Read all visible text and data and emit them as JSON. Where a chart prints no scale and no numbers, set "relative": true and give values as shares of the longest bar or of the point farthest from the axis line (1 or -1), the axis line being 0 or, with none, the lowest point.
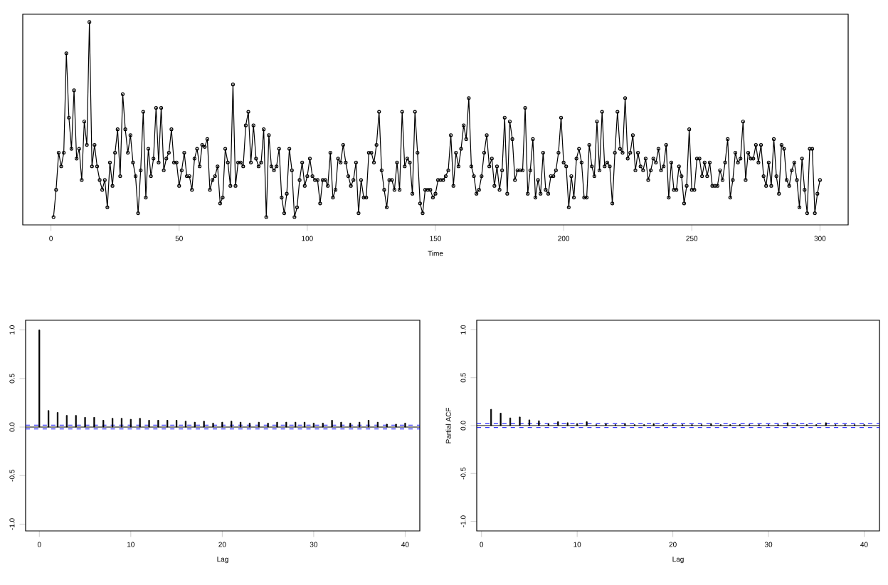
{
  "chart_data": [
    {
      "type": "line",
      "xlabel": "Time",
      "relative": true,
      "color": "#000000",
      "marker": "circle",
      "line_style": "solid",
      "xlim": [
        -11,
        311
      ],
      "xticks": [
        0,
        50,
        100,
        150,
        200,
        250,
        300
      ],
      "x": [
        1,
        2,
        3,
        4,
        5,
        6,
        7,
        8,
        9,
        10,
        11,
        12,
        13,
        14,
        15,
        16,
        17,
        18,
        19,
        20,
        21,
        22,
        23,
        24,
        25,
        26,
        27,
        28,
        29,
        30,
        31,
        32,
        33,
        34,
        35,
        36,
        37,
        38,
        39,
        40,
        41,
        42,
        43,
        44,
        45,
        46,
        47,
        48,
        49,
        50,
        51,
        52,
        53,
        54,
        55,
        56,
        57,
        58,
        59,
        60,
        61,
        62,
        63,
        64,
        65,
        66,
        67,
        68,
        69,
        70,
        71,
        72,
        73,
        74,
        75,
        76,
        77,
        78,
        79,
        80,
        81,
        82,
        83,
        84,
        85,
        86,
        87,
        88,
        89,
        90,
        91,
        92,
        93,
        94,
        95,
        96,
        97,
        98,
        99,
        100,
        101,
        102,
        103,
        104,
        105,
        106,
        107,
        108,
        109,
        110,
        111,
        112,
        113,
        114,
        115,
        116,
        117,
        118,
        119,
        120,
        121,
        122,
        123,
        124,
        125,
        126,
        127,
        128,
        129,
        130,
        131,
        132,
        133,
        134,
        135,
        136,
        137,
        138,
        139,
        140,
        141,
        142,
        143,
        144,
        145,
        146,
        147,
        148,
        149,
        150,
        151,
        152,
        153,
        154,
        155,
        156,
        157,
        158,
        159,
        160,
        161,
        162,
        163,
        164,
        165,
        166,
        167,
        168,
        169,
        170,
        171,
        172,
        173,
        174,
        175,
        176,
        177,
        178,
        179,
        180,
        181,
        182,
        183,
        184,
        185,
        186,
        187,
        188,
        189,
        190,
        191,
        192,
        193,
        194,
        195,
        196,
        197,
        198,
        199,
        200,
        201,
        202,
        203,
        204,
        205,
        206,
        207,
        208,
        209,
        210,
        211,
        212,
        213,
        214,
        215,
        216,
        217,
        218,
        219,
        220,
        221,
        222,
        223,
        224,
        225,
        226,
        227,
        228,
        229,
        230,
        231,
        232,
        233,
        234,
        235,
        236,
        237,
        238,
        239,
        240,
        241,
        242,
        243,
        244,
        245,
        246,
        247,
        248,
        249,
        250,
        251,
        252,
        253,
        254,
        255,
        256,
        257,
        258,
        259,
        260,
        261,
        262,
        263,
        264,
        265,
        266,
        267,
        268,
        269,
        270,
        271,
        272,
        273,
        274,
        275,
        276,
        277,
        278,
        279,
        280,
        281,
        282,
        283,
        284,
        285,
        286,
        287,
        288,
        289,
        290,
        291,
        292,
        293,
        294,
        295,
        296,
        297,
        298,
        299,
        300
      ],
      "values": [
        0,
        0.14,
        0.33,
        0.26,
        0.33,
        0.84,
        0.51,
        0.35,
        0.65,
        0.3,
        0.35,
        0.19,
        0.49,
        0.37,
        1,
        0.26,
        0.37,
        0.26,
        0.19,
        0.14,
        0.19,
        0.05,
        0.28,
        0.16,
        0.33,
        0.45,
        0.21,
        0.63,
        0.45,
        0.33,
        0.42,
        0.28,
        0.21,
        0.02,
        0.24,
        0.54,
        0.1,
        0.35,
        0.21,
        0.3,
        0.56,
        0.28,
        0.56,
        0.24,
        0.3,
        0.33,
        0.45,
        0.28,
        0.28,
        0.16,
        0.24,
        0.33,
        0.21,
        0.21,
        0.14,
        0.3,
        0.35,
        0.26,
        0.37,
        0.36,
        0.4,
        0.14,
        0.19,
        0.21,
        0.26,
        0.07,
        0.1,
        0.35,
        0.28,
        0.16,
        0.68,
        0.16,
        0.28,
        0.28,
        0.26,
        0.47,
        0.54,
        0.28,
        0.47,
        0.3,
        0.26,
        0.28,
        0.45,
        0,
        0.42,
        0.26,
        0.24,
        0.26,
        0.35,
        0.1,
        0.02,
        0.12,
        0.35,
        0.24,
        0,
        0.05,
        0.19,
        0.28,
        0.16,
        0.21,
        0.3,
        0.21,
        0.19,
        0.19,
        0.07,
        0.19,
        0.19,
        0.16,
        0.33,
        0.1,
        0.14,
        0.3,
        0.28,
        0.37,
        0.28,
        0.21,
        0.16,
        0.19,
        0.28,
        0.02,
        0.19,
        0.1,
        0.1,
        0.33,
        0.33,
        0.28,
        0.37,
        0.54,
        0.24,
        0.14,
        0.05,
        0.19,
        0.19,
        0.14,
        0.28,
        0.14,
        0.54,
        0.26,
        0.3,
        0.28,
        0.12,
        0.54,
        0.33,
        0.07,
        0.02,
        0.14,
        0.14,
        0.14,
        0.1,
        0.12,
        0.19,
        0.19,
        0.19,
        0.21,
        0.24,
        0.42,
        0.16,
        0.33,
        0.26,
        0.35,
        0.47,
        0.4,
        0.61,
        0.26,
        0.21,
        0.12,
        0.14,
        0.21,
        0.33,
        0.42,
        0.26,
        0.3,
        0.16,
        0.26,
        0.14,
        0.24,
        0.51,
        0.12,
        0.49,
        0.4,
        0.19,
        0.24,
        0.24,
        0.24,
        0.56,
        0.12,
        0.24,
        0.4,
        0.1,
        0.19,
        0.12,
        0.33,
        0.14,
        0.12,
        0.21,
        0.21,
        0.24,
        0.33,
        0.51,
        0.28,
        0.26,
        0.05,
        0.21,
        0.1,
        0.3,
        0.35,
        0.28,
        0.1,
        0.1,
        0.37,
        0.26,
        0.21,
        0.49,
        0.24,
        0.54,
        0.26,
        0.28,
        0.26,
        0.07,
        0.33,
        0.54,
        0.35,
        0.33,
        0.61,
        0.3,
        0.33,
        0.42,
        0.24,
        0.33,
        0.26,
        0.24,
        0.3,
        0.19,
        0.24,
        0.3,
        0.28,
        0.35,
        0.24,
        0.26,
        0.37,
        0.1,
        0.28,
        0.14,
        0.14,
        0.26,
        0.21,
        0.07,
        0.16,
        0.45,
        0.14,
        0.14,
        0.3,
        0.3,
        0.21,
        0.28,
        0.21,
        0.28,
        0.16,
        0.16,
        0.16,
        0.24,
        0.19,
        0.28,
        0.4,
        0.1,
        0.19,
        0.33,
        0.28,
        0.3,
        0.49,
        0.19,
        0.33,
        0.3,
        0.3,
        0.37,
        0.28,
        0.37,
        0.21,
        0.16,
        0.28,
        0.16,
        0.4,
        0.21,
        0.12,
        0.37,
        0.35,
        0.19,
        0.16,
        0.24,
        0.28,
        0.19,
        0.05,
        0.3,
        0.14,
        0.02,
        0.35,
        0.35,
        0.02,
        0.12,
        0.19
      ]
    },
    {
      "type": "bar",
      "xlabel": "Lag",
      "color": "#000000",
      "xlim": [
        -1.5,
        41.6
      ],
      "xticks": [
        0,
        10,
        20,
        30,
        40
      ],
      "ylim": [
        -1.07,
        1.1
      ],
      "yticks": [
        {
          "value": -1,
          "label": "-1.0"
        },
        {
          "value": -0.5,
          "label": "-0.5"
        },
        {
          "value": 0,
          "label": "0.0"
        },
        {
          "value": 0.5,
          "label": "0.5"
        },
        {
          "value": 1,
          "label": "1.0"
        }
      ],
      "ref_lines": [
        {
          "axis": "y",
          "value": 0,
          "color": "#000000",
          "line_style": "solid"
        },
        {
          "axis": "y",
          "value": 0.02,
          "color": "#0000ff",
          "line_style": "dashed"
        },
        {
          "axis": "y",
          "value": -0.02,
          "color": "#0000ff",
          "line_style": "dashed"
        }
      ],
      "x": [
        0,
        1,
        2,
        3,
        4,
        5,
        6,
        7,
        8,
        9,
        10,
        11,
        12,
        13,
        14,
        15,
        16,
        17,
        18,
        19,
        20,
        21,
        22,
        23,
        24,
        25,
        26,
        27,
        28,
        29,
        30,
        31,
        32,
        33,
        34,
        35,
        36,
        37,
        38,
        39,
        40
      ],
      "values": [
        1,
        0.17,
        0.15,
        0.12,
        0.12,
        0.1,
        0.1,
        0.07,
        0.09,
        0.09,
        0.08,
        0.09,
        0.07,
        0.07,
        0.07,
        0.07,
        0.06,
        0.05,
        0.06,
        0.04,
        0.05,
        0.06,
        0.05,
        0.04,
        0.05,
        0.04,
        0.05,
        0.05,
        0.05,
        0.05,
        0.04,
        0.04,
        0.07,
        0.05,
        0.04,
        0.05,
        0.07,
        0.05,
        0.03,
        0.03,
        0.04
      ]
    },
    {
      "type": "bar",
      "xlabel": "Lag",
      "ylabel": "Partial ACF",
      "color": "#000000",
      "xlim": [
        -0.5,
        41.6
      ],
      "xticks": [
        0,
        10,
        20,
        30,
        40
      ],
      "ylim": [
        -1.1,
        1.1
      ],
      "yticks": [
        {
          "value": -1,
          "label": "-1.0"
        },
        {
          "value": -0.5,
          "label": "-0.5"
        },
        {
          "value": 0,
          "label": "0.0"
        },
        {
          "value": 0.5,
          "label": "0.5"
        },
        {
          "value": 1,
          "label": "1.0"
        }
      ],
      "ref_lines": [
        {
          "axis": "y",
          "value": 0,
          "color": "#000000",
          "line_style": "solid"
        },
        {
          "axis": "y",
          "value": 0.02,
          "color": "#0000ff",
          "line_style": "dashed"
        },
        {
          "axis": "y",
          "value": -0.02,
          "color": "#0000ff",
          "line_style": "dashed"
        }
      ],
      "x": [
        1,
        2,
        3,
        4,
        5,
        6,
        7,
        8,
        9,
        10,
        11,
        12,
        13,
        14,
        15,
        16,
        17,
        18,
        19,
        20,
        21,
        22,
        23,
        24,
        25,
        26,
        27,
        28,
        29,
        30,
        31,
        32,
        33,
        34,
        35,
        36,
        37,
        38,
        39,
        40
      ],
      "values": [
        0.17,
        0.13,
        0.08,
        0.09,
        0.06,
        0.05,
        0.02,
        0.04,
        0.03,
        0.02,
        0.04,
        0.01,
        0.02,
        0.01,
        0.02,
        0.01,
        0.01,
        0.02,
        0.01,
        0.01,
        0.01,
        0.01,
        0.01,
        0.02,
        0.01,
        0.01,
        0.01,
        0.01,
        0.01,
        0.01,
        0.01,
        0.03,
        0.01,
        0.01,
        0.01,
        0.03,
        0.01,
        0.01,
        0.01,
        0.01
      ]
    }
  ]
}
